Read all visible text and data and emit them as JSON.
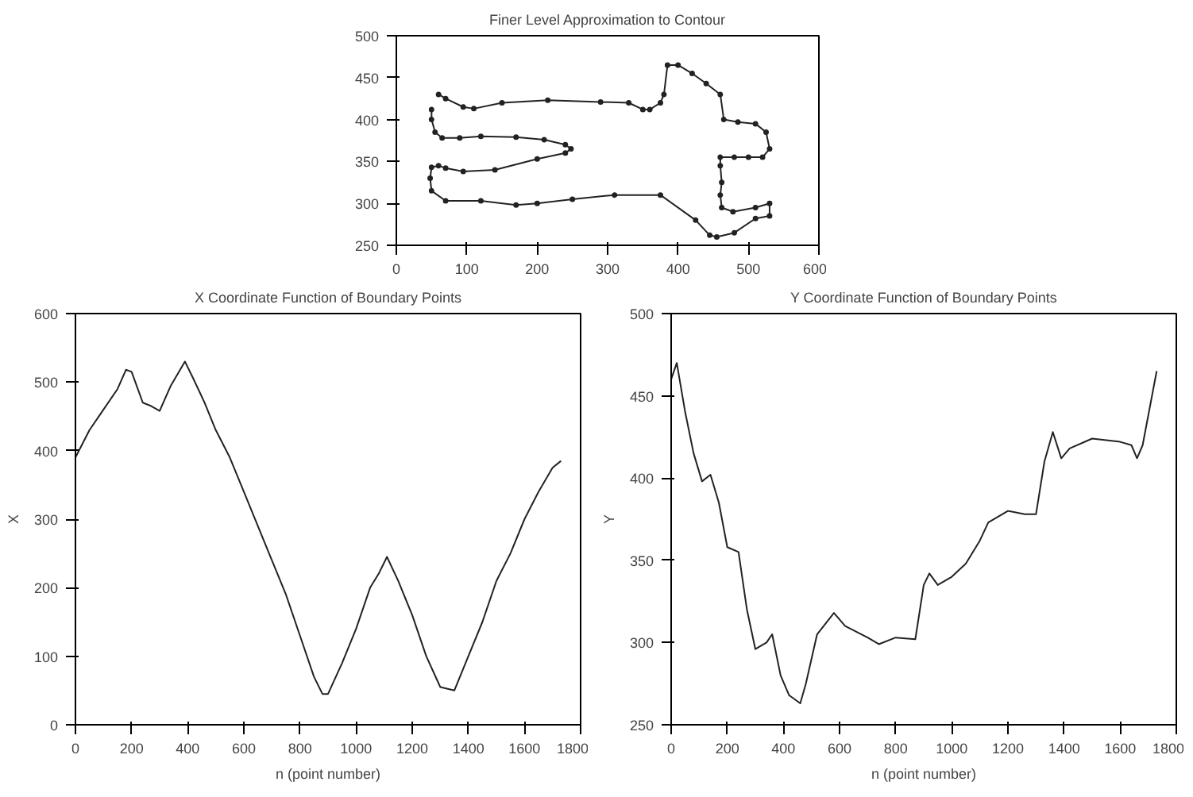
{
  "chart_data": [
    {
      "type": "line",
      "title": "Finer Level Approximation to Contour",
      "marker": "circle",
      "color": "#222222",
      "x": [
        60,
        70,
        95,
        110,
        150,
        215,
        290,
        330,
        350,
        360,
        375,
        380,
        385,
        400,
        420,
        440,
        460,
        465,
        485,
        510,
        525,
        530,
        520,
        500,
        480,
        460,
        460,
        462,
        460,
        462,
        478,
        510,
        530,
        530,
        510,
        480,
        455,
        445,
        425,
        375,
        310,
        250,
        200,
        170,
        120,
        70,
        50,
        48,
        50,
        60,
        70,
        95,
        140,
        200,
        240,
        248,
        240,
        210,
        170,
        120,
        90,
        65,
        55,
        50,
        50
      ],
      "values": [
        430,
        425,
        415,
        413,
        420,
        423,
        421,
        420,
        412,
        412,
        420,
        430,
        465,
        465,
        455,
        443,
        430,
        400,
        397,
        395,
        385,
        365,
        355,
        355,
        355,
        355,
        345,
        325,
        310,
        295,
        290,
        295,
        300,
        285,
        282,
        265,
        260,
        262,
        280,
        310,
        310,
        305,
        300,
        298,
        303,
        303,
        315,
        330,
        343,
        345,
        342,
        338,
        340,
        353,
        360,
        365,
        370,
        376,
        379,
        380,
        378,
        378,
        385,
        400,
        412
      ],
      "xlim": [
        0,
        600
      ],
      "ylim": [
        250,
        500
      ],
      "xticks": [
        0,
        100,
        200,
        300,
        400,
        500,
        600
      ],
      "yticks": [
        250,
        300,
        350,
        400,
        450,
        500
      ],
      "grid": false
    },
    {
      "type": "line",
      "title": "X Coordinate Function of Boundary Points",
      "xlabel": "n (point number)",
      "ylabel": "X",
      "color": "#222222",
      "x": [
        0,
        50,
        100,
        150,
        180,
        200,
        240,
        270,
        300,
        340,
        390,
        420,
        460,
        500,
        550,
        600,
        650,
        700,
        750,
        800,
        850,
        880,
        900,
        950,
        1000,
        1050,
        1080,
        1110,
        1150,
        1200,
        1250,
        1300,
        1350,
        1400,
        1450,
        1500,
        1550,
        1600,
        1650,
        1700,
        1730
      ],
      "values": [
        390,
        430,
        460,
        490,
        518,
        515,
        470,
        465,
        458,
        495,
        530,
        505,
        470,
        430,
        390,
        340,
        290,
        240,
        190,
        130,
        70,
        45,
        45,
        90,
        140,
        200,
        220,
        245,
        210,
        160,
        100,
        55,
        50,
        100,
        150,
        210,
        250,
        300,
        340,
        375,
        385
      ],
      "xlim": [
        0,
        1800
      ],
      "ylim": [
        0,
        600
      ],
      "xticks": [
        0,
        200,
        400,
        600,
        800,
        1000,
        1200,
        1400,
        1600,
        1800
      ],
      "yticks": [
        0,
        100,
        200,
        300,
        400,
        500,
        600
      ],
      "grid": false
    },
    {
      "type": "line",
      "title": "Y Coordinate Function of Boundary Points",
      "xlabel": "n (point number)",
      "ylabel": "Y",
      "color": "#222222",
      "x": [
        0,
        20,
        50,
        80,
        110,
        140,
        170,
        200,
        240,
        270,
        300,
        340,
        360,
        390,
        420,
        460,
        480,
        520,
        580,
        620,
        700,
        740,
        800,
        870,
        900,
        920,
        950,
        1000,
        1050,
        1100,
        1130,
        1200,
        1260,
        1300,
        1330,
        1360,
        1390,
        1420,
        1500,
        1600,
        1640,
        1660,
        1680,
        1730
      ],
      "values": [
        460,
        470,
        440,
        415,
        398,
        402,
        385,
        358,
        355,
        320,
        296,
        300,
        305,
        280,
        268,
        263,
        275,
        305,
        318,
        310,
        303,
        299,
        303,
        302,
        335,
        342,
        335,
        340,
        348,
        362,
        373,
        380,
        378,
        378,
        410,
        428,
        412,
        418,
        424,
        422,
        420,
        412,
        420,
        465
      ],
      "xlim": [
        0,
        1800
      ],
      "ylim": [
        250,
        500
      ],
      "xticks": [
        0,
        200,
        400,
        600,
        800,
        1000,
        1200,
        1400,
        1600,
        1800
      ],
      "yticks": [
        250,
        300,
        350,
        400,
        450,
        500
      ],
      "grid": false
    }
  ]
}
